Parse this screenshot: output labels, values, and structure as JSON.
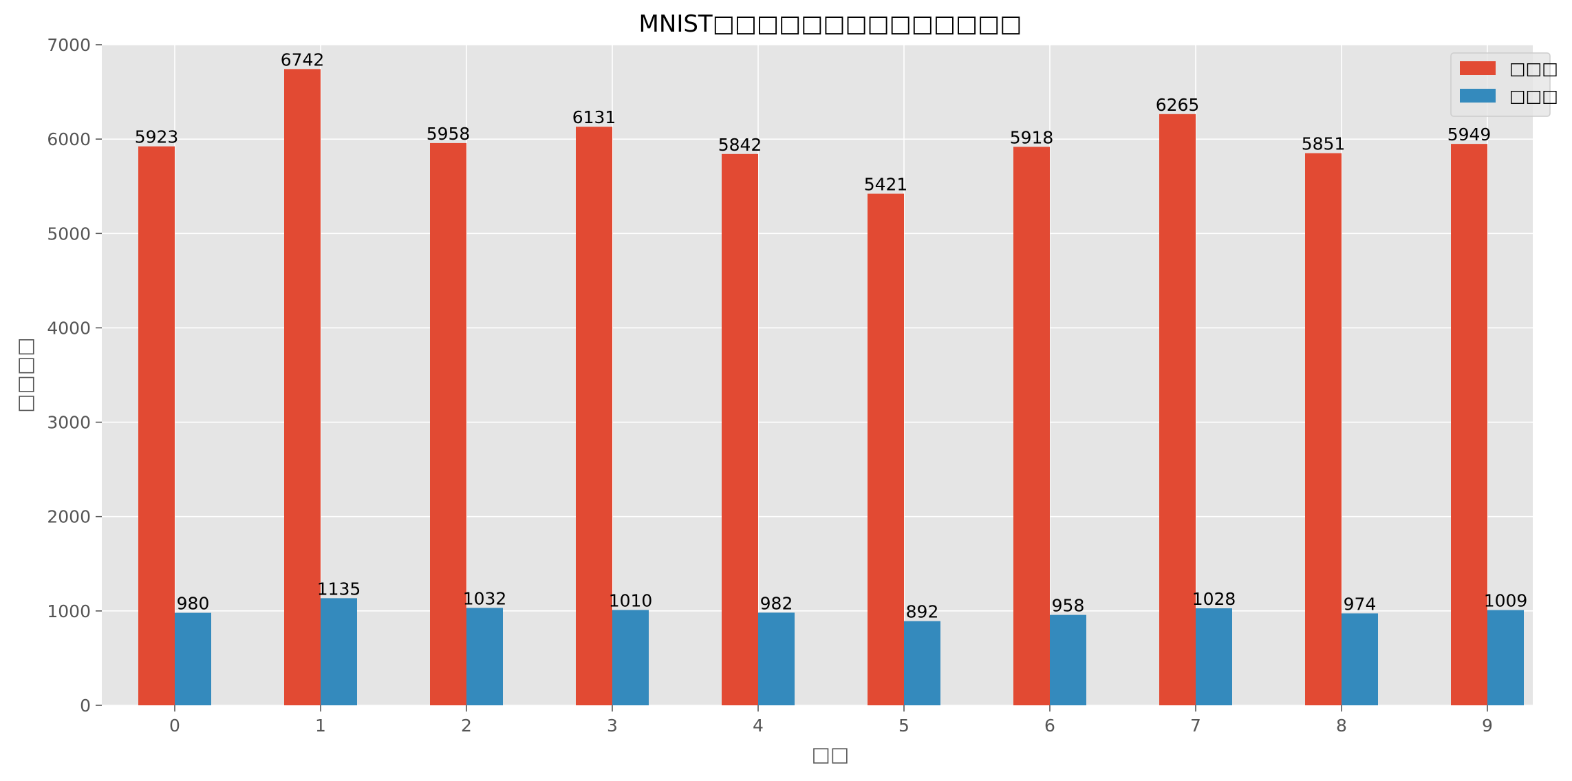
{
  "chart_data": {
    "type": "bar",
    "title": "MNIST□□□□□□□□□□□□□□",
    "xlabel": "□□",
    "ylabel": "□□□□",
    "categories": [
      "0",
      "1",
      "2",
      "3",
      "4",
      "5",
      "6",
      "7",
      "8",
      "9"
    ],
    "series": [
      {
        "name": "□□□",
        "color": "#E24A33",
        "values": [
          5923,
          6742,
          5958,
          6131,
          5842,
          5421,
          5918,
          6265,
          5851,
          5949
        ]
      },
      {
        "name": "□□□",
        "color": "#348ABD",
        "values": [
          980,
          1135,
          1032,
          1010,
          982,
          892,
          958,
          1028,
          974,
          1009
        ]
      }
    ],
    "ylim": [
      0,
      7000
    ],
    "yticks": [
      0,
      1000,
      2000,
      3000,
      4000,
      5000,
      6000,
      7000
    ],
    "grid": true,
    "legend_position": "top-right",
    "background_color": "#E5E5E5",
    "grid_color": "#FFFFFF",
    "tick_color": "#555555",
    "text_color": "#000000"
  }
}
